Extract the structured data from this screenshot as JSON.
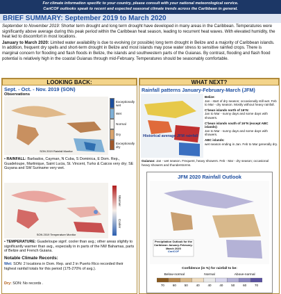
{
  "header": {
    "notice": "For climate information specific to your country, please consult with your national meteorological service.",
    "subnotice": "CariCOF outlooks speak to recent and expected seasonal climate trends across the Caribbean in general.",
    "title": "BRIEF SUMMARY: September 2019 to March 2020"
  },
  "summary": {
    "p1_lead": "September to November 2019:",
    "p1_text": "Shorter term drought and long term drought have developed in many areas in the Caribbean. Temperatures were significantly above average during this peak period within the Caribbean heat season, leading to recurrent heat waves. With elevated humidity, the heat led to discomfort in most locations.",
    "p2_lead": "January to March 2020:",
    "p2_text": "Limited water availability is due to evolving (or possible) long term drought in Belize and a majority of Caribbean islands. In addition, frequent dry spells and short-term drought in Belize and most islands may pose water stress to sensitive rainfed crops. There is marginal concern for flooding and flash floods in Belize, the islands and southwestern parts of the Guianas. By contrast, flooding and flash flood potential is relatively high in the coastal Guianas through mid-February. Temperatures should be seasonably comfortable."
  },
  "looking_back": {
    "header": "LOOKING BACK:",
    "period": "Sept. - Oct. - Nov. 2019 (SON)",
    "observations": "Observations",
    "rain_legend": [
      "Exceptionally wet",
      "Wet",
      "Normal",
      "Dry",
      "Exceptionally dry"
    ],
    "rain_caption": "SON 2019 Rainfall Monitor",
    "rain_lead": "RAINFALL:",
    "rain_text": "Barbados, Cayman, N Cuba, S Dominica, E Dom. Rep., Guadeloupe, Martinique, Saint Lucia, St. Vincent, Turks & Caicos very dry; SE Guyana and SW Suriname very wet.",
    "temp_legend": [
      "Warmer",
      "Cooler"
    ],
    "temp_caption": "SON 2019 Temperature Monitor",
    "temp_lead": "TEMPERATURE:",
    "temp_text": "Guadeloupe signf. cooler than avg.; other areas slightly to significantly warmer than avg., especially in in parts of the NW Bahamas, parts of Belize and French Guiana.",
    "records_title": "Notable Climate Records:",
    "wet_lead": "Wet:",
    "wet_text": "SON: 2 locations in Dom. Rep. and 2 in Puerto Rico recorded their highest rainfall totals for this period (175-270% of avg.).",
    "dry_lead": "Dry:",
    "dry_text": "SON: No records ."
  },
  "what_next": {
    "header": "WHAT NEXT?",
    "rain_title": "Rainfall patterns January-February-March (JFM)",
    "map_caption": "Historical average JFM rainfall",
    "regions": [
      {
        "name": "Belize:",
        "text": "Jan - start of dry season; occasionally still wet. Feb to Mar - dry season. Mostly without heavy rainfall."
      },
      {
        "name": "C'bean islands north of 16°N:",
        "text": "Jan to Mar - sunny days and some days with showers."
      },
      {
        "name": "C'bean islands south of 16°N (except ABC islands):",
        "text": "Jan to Mar - sunny days and some days with showers."
      },
      {
        "name": "ABC islands:",
        "text": "wet season ending in Jan. Feb to Mar generally dry."
      }
    ],
    "guianas_name": "Guianas:",
    "guianas_text": "Jan - wet season. Frequent, heavy showers. Feb - Mar - dry season; occasional heavy showers and thunderstorms.",
    "outlook_title": "JFM 2020 Rainfall Outlook",
    "outlook_caption": "Precipitation Outlook for the Caribbean January-February-March 2020",
    "outlook_brand": "CariCOF",
    "legend_title": "Confidence (in %) for rainfall to be:",
    "legend_groups": [
      "Below-normal",
      "Normal",
      "Above-normal"
    ],
    "legend_ticks": [
      "70",
      "60",
      "50",
      "40",
      "40",
      "40",
      "50",
      "60",
      "70"
    ]
  }
}
